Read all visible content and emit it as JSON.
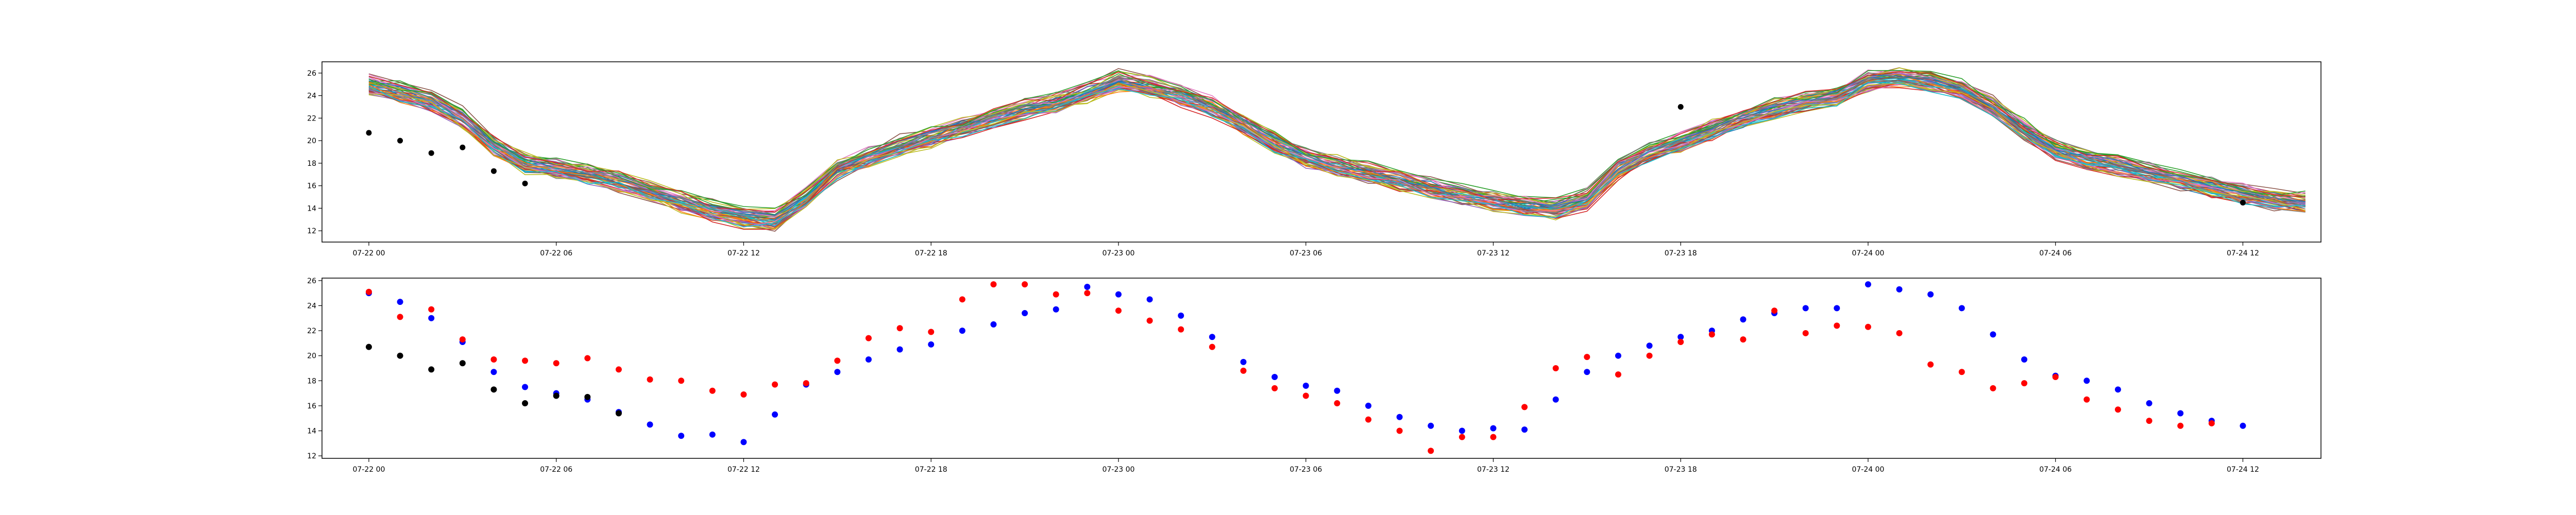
{
  "chart_data": [
    {
      "type": "line",
      "title": "",
      "xlabel": "",
      "ylabel": "",
      "ylim": [
        11,
        27
      ],
      "xlim": [
        "2024-07-21 22:30",
        "2024-07-24 14:30"
      ],
      "grid": false,
      "legend": "none",
      "x_ticks": [
        "07-22 00",
        "07-22 06",
        "07-22 12",
        "07-22 18",
        "07-23 00",
        "07-23 06",
        "07-23 12",
        "07-23 18",
        "07-24 00",
        "07-24 06",
        "07-24 12"
      ],
      "y_ticks": [
        12,
        14,
        16,
        18,
        20,
        22,
        24,
        26
      ],
      "x_start": "2024-07-22 00:00",
      "x_step_hours": 1,
      "ensemble_base": [
        25.0,
        24.3,
        23.5,
        22.0,
        19.5,
        18.0,
        17.5,
        17.0,
        16.4,
        15.5,
        14.6,
        13.8,
        13.2,
        13.0,
        15.0,
        17.5,
        18.5,
        19.5,
        20.3,
        21.2,
        22.0,
        22.7,
        23.4,
        24.2,
        25.3,
        24.8,
        24.0,
        23.0,
        21.5,
        19.8,
        18.5,
        17.8,
        17.2,
        16.5,
        15.8,
        15.2,
        14.6,
        14.2,
        14.0,
        14.8,
        17.5,
        19.0,
        20.0,
        21.0,
        22.0,
        22.8,
        23.5,
        24.0,
        25.3,
        25.5,
        25.3,
        24.5,
        23.0,
        21.0,
        19.2,
        18.3,
        17.8,
        17.2,
        16.6,
        15.9,
        15.3,
        14.8,
        14.5
      ],
      "ensemble_members": 50,
      "ensemble_colors": [
        "#1f77b4",
        "#ff7f0e",
        "#2ca02c",
        "#d62728",
        "#9467bd",
        "#8c564b",
        "#e377c2",
        "#7f7f7f",
        "#bcbd22",
        "#17becf"
      ],
      "series": [
        {
          "color": "#000000",
          "marker": "o",
          "x": [
            "2024-07-22 00:00",
            "2024-07-22 01:00",
            "2024-07-22 02:00",
            "2024-07-22 03:00",
            "2024-07-22 04:00",
            "2024-07-22 05:00",
            "2024-07-23 18:00",
            "2024-07-24 12:00"
          ],
          "values": [
            20.7,
            20.0,
            18.9,
            19.4,
            17.3,
            16.2,
            23.0,
            14.5
          ]
        }
      ]
    },
    {
      "type": "scatter",
      "title": "",
      "xlabel": "",
      "ylabel": "",
      "ylim": [
        11.8,
        26.2
      ],
      "xlim": [
        "2024-07-21 22:30",
        "2024-07-24 14:30"
      ],
      "grid": false,
      "legend": "none",
      "x_ticks": [
        "07-22 00",
        "07-22 06",
        "07-22 12",
        "07-22 18",
        "07-23 00",
        "07-23 06",
        "07-23 12",
        "07-23 18",
        "07-24 00",
        "07-24 06",
        "07-24 12"
      ],
      "y_ticks": [
        12,
        14,
        16,
        18,
        20,
        22,
        24,
        26
      ],
      "x_start": "2024-07-22 00:00",
      "x_step_hours": 1,
      "series": [
        {
          "color": "#0000ff",
          "values": [
            25.0,
            24.3,
            23.0,
            21.1,
            18.7,
            17.5,
            17.0,
            16.5,
            15.5,
            14.5,
            13.6,
            13.7,
            13.1,
            15.3,
            17.7,
            18.7,
            19.7,
            20.5,
            20.9,
            22.0,
            22.5,
            23.4,
            23.7,
            25.5,
            24.9,
            24.5,
            23.2,
            21.5,
            19.5,
            18.3,
            17.6,
            17.2,
            16.0,
            15.1,
            14.4,
            14.0,
            14.2,
            14.1,
            16.5,
            18.7,
            20.0,
            20.8,
            21.5,
            22.0,
            22.9,
            23.4,
            23.8,
            23.8,
            25.7,
            25.3,
            24.9,
            23.8,
            21.7,
            19.7,
            18.4,
            18.0,
            17.3,
            16.2,
            15.4,
            14.8,
            14.4
          ]
        },
        {
          "color": "#ff0000",
          "values": [
            25.1,
            23.1,
            23.7,
            21.3,
            19.7,
            19.6,
            19.4,
            19.8,
            18.9,
            18.1,
            18.0,
            17.2,
            16.9,
            17.7,
            17.8,
            19.6,
            21.4,
            22.2,
            21.9,
            24.5,
            25.7,
            25.7,
            24.9,
            25.0,
            23.6,
            22.8,
            22.1,
            20.7,
            18.8,
            17.4,
            16.8,
            16.2,
            14.9,
            14.0,
            12.4,
            13.5,
            13.5,
            15.9,
            19.0,
            19.9,
            18.5,
            20.0,
            21.1,
            21.7,
            21.3,
            23.6,
            21.8,
            22.4,
            22.3,
            21.8,
            19.3,
            18.7,
            17.4,
            17.8,
            18.3,
            16.5,
            15.7,
            14.8,
            14.4,
            14.6
          ]
        },
        {
          "color": "#000000",
          "values": [
            20.7,
            20.0,
            18.9,
            19.4,
            17.3,
            16.2,
            16.8,
            16.7,
            15.4
          ]
        }
      ]
    }
  ]
}
